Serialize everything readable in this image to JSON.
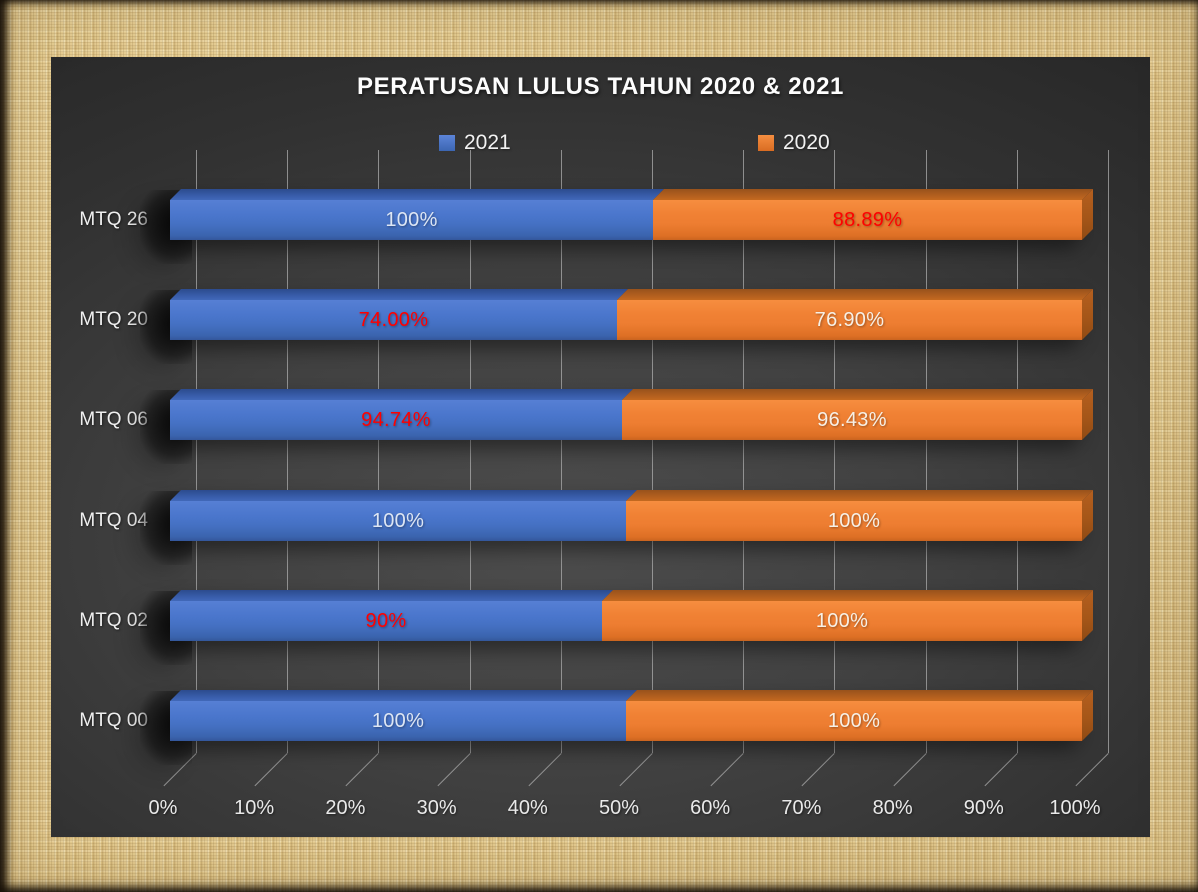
{
  "title": "PERATUSAN LULUS TAHUN 2020 & 2021",
  "legend": {
    "items": [
      {
        "label": "2021",
        "color": "#4472c4"
      },
      {
        "label": "2020",
        "color": "#ed7d31"
      }
    ],
    "position": "top"
  },
  "colors": {
    "series_2021": "#4472c4",
    "series_2020": "#ed7d31",
    "label_white_on_blue": "#dde6f4",
    "label_white_on_orange": "#f7f0e6",
    "label_red": "#ff0000",
    "panel_background": "#3a3a3a",
    "gridline": "#b2b2b2",
    "axis_text": "#e9e9e9",
    "title_text": "#fdfdfd",
    "frame_background": "#dcc389"
  },
  "chart_data": {
    "type": "bar",
    "subtype": "horizontal-100%-stacked-3d",
    "title": "PERATUSAN LULUS TAHUN 2020 & 2021",
    "categories": [
      "MTQ 26",
      "MTQ 20",
      "MTQ 06",
      "MTQ 04",
      "MTQ 02",
      "MTQ 00"
    ],
    "series": [
      {
        "name": "2021",
        "color": "#4472c4",
        "values": [
          100,
          74.0,
          94.74,
          100,
          90,
          100
        ],
        "labels": [
          "100%",
          "74.00%",
          "94.74%",
          "100%",
          "90%",
          "100%"
        ],
        "label_colors": [
          "#dde6f4",
          "#ff0000",
          "#ff0000",
          "#dde6f4",
          "#ff0000",
          "#dde6f4"
        ]
      },
      {
        "name": "2020",
        "color": "#ed7d31",
        "values": [
          88.89,
          76.9,
          96.43,
          100,
          100,
          100
        ],
        "labels": [
          "88.89%",
          "76.90%",
          "96.43%",
          "100%",
          "100%",
          "100%"
        ],
        "label_colors": [
          "#ff0000",
          "#f7f0e6",
          "#f7f0e6",
          "#f7f0e6",
          "#f7f0e6",
          "#f7f0e6"
        ]
      }
    ],
    "x_ticks": [
      "0%",
      "10%",
      "20%",
      "30%",
      "40%",
      "50%",
      "60%",
      "70%",
      "80%",
      "90%",
      "100%"
    ],
    "xlim": [
      0,
      100
    ],
    "xlabel": "",
    "ylabel": "",
    "grid": true,
    "legend_position": "top"
  }
}
